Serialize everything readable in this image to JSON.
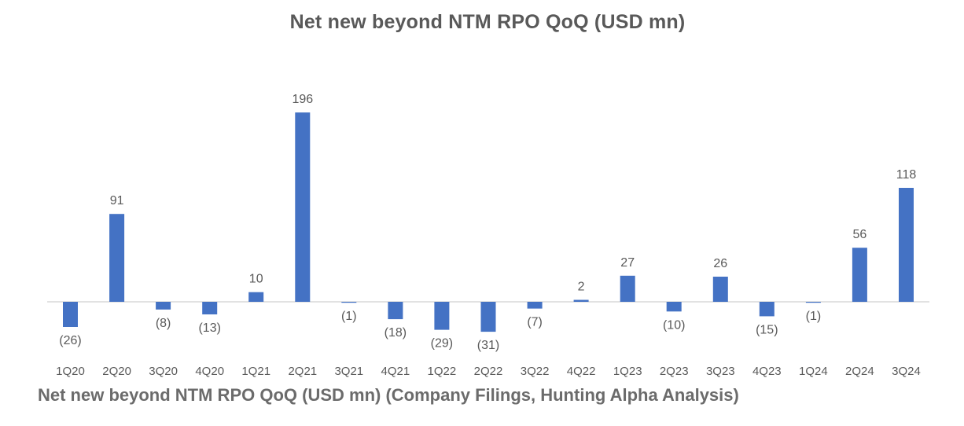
{
  "caption": "Net new beyond NTM RPO QoQ (USD mn) (Company Filings, Hunting Alpha Analysis)",
  "colors": {
    "bar": "#4472C4",
    "axis": "#d9d9d9",
    "label": "#595959"
  },
  "chart_data": {
    "type": "bar",
    "title": "Net new beyond NTM RPO QoQ (USD mn)",
    "xlabel": "",
    "ylabel": "",
    "grid": false,
    "legend": "none",
    "categories": [
      "1Q20",
      "2Q20",
      "3Q20",
      "4Q20",
      "1Q21",
      "2Q21",
      "3Q21",
      "4Q21",
      "1Q22",
      "2Q22",
      "3Q22",
      "4Q22",
      "1Q23",
      "2Q23",
      "3Q23",
      "4Q23",
      "1Q24",
      "2Q24",
      "3Q24"
    ],
    "values": [
      -26,
      91,
      -8,
      -13,
      10,
      196,
      -1,
      -18,
      -29,
      -31,
      -7,
      2,
      27,
      -10,
      26,
      -15,
      -1,
      56,
      118
    ],
    "data_labels": [
      "(26)",
      "91",
      "(8)",
      "(13)",
      "10",
      "196",
      "(1)",
      "(18)",
      "(29)",
      "(31)",
      "(7)",
      "2",
      "27",
      "(10)",
      "26",
      "(15)",
      "(1)",
      "56",
      "118"
    ]
  }
}
